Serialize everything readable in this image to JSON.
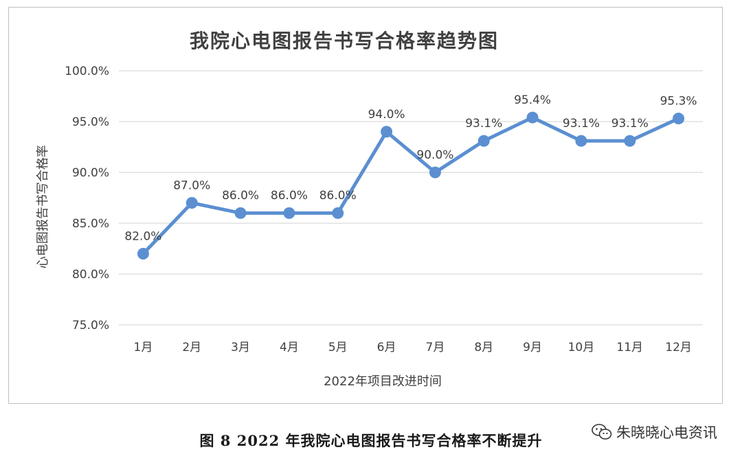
{
  "chart_data": {
    "type": "line",
    "title": "我院心电图报告书写合格率趋势图",
    "xlabel": "2022年项目改进时间",
    "ylabel": "心电图报告书写合格率",
    "categories": [
      "1月",
      "2月",
      "3月",
      "4月",
      "5月",
      "6月",
      "7月",
      "8月",
      "9月",
      "10月",
      "11月",
      "12月"
    ],
    "values": [
      82.0,
      87.0,
      86.0,
      86.0,
      86.0,
      94.0,
      90.0,
      93.1,
      95.4,
      93.1,
      93.1,
      95.3
    ],
    "data_labels": [
      "82.0%",
      "87.0%",
      "86.0%",
      "86.0%",
      "86.0%",
      "94.0%",
      "90.0%",
      "93.1%",
      "95.4%",
      "93.1%",
      "93.1%",
      "95.3%"
    ],
    "ylim": [
      75,
      100
    ],
    "yticks": [
      75,
      80,
      85,
      90,
      95,
      100
    ],
    "ytick_labels": [
      "75.0%",
      "80.0%",
      "85.0%",
      "90.0%",
      "95.0%",
      "100.0%"
    ],
    "grid": true,
    "legend": "none",
    "line_color": "#5b8fd1"
  },
  "caption": "图 8  2022 年我院心电图报告书写合格率不断提升",
  "watermark": {
    "icon": "wechat-icon",
    "text": "朱晓晓心电资讯"
  }
}
